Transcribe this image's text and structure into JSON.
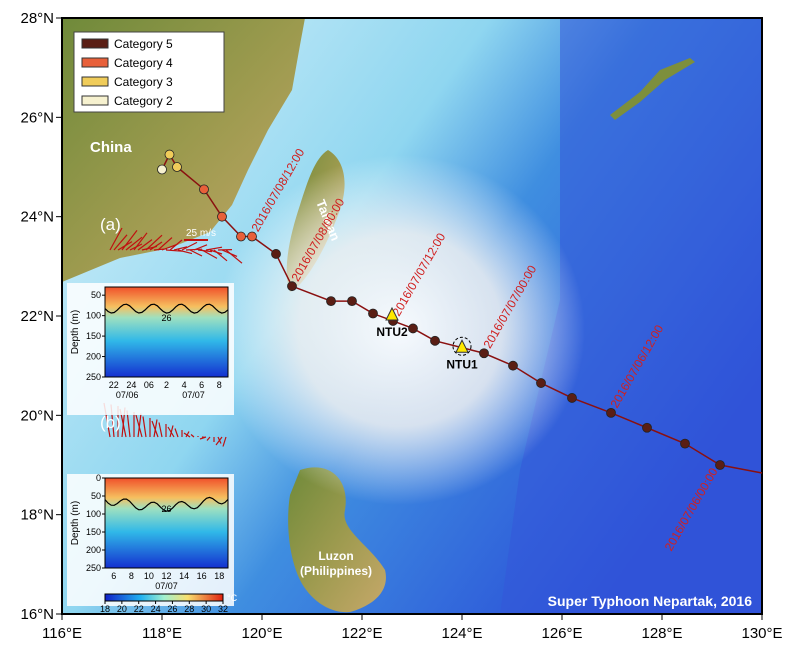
{
  "map": {
    "title": "Super Typhoon Nepartak, 2016",
    "lonlim": [
      116,
      130
    ],
    "latlim": [
      16,
      28
    ],
    "lon_ticks": [
      {
        "value": 116,
        "label": "116°E"
      },
      {
        "value": 118,
        "label": "118°E"
      },
      {
        "value": 120,
        "label": "120°E"
      },
      {
        "value": 122,
        "label": "122°E"
      },
      {
        "value": 124,
        "label": "124°E"
      },
      {
        "value": 126,
        "label": "126°E"
      },
      {
        "value": 128,
        "label": "128°E"
      },
      {
        "value": 130,
        "label": "130°E"
      }
    ],
    "lat_ticks": [
      {
        "value": 16,
        "label": "16°N"
      },
      {
        "value": 18,
        "label": "18°N"
      },
      {
        "value": 20,
        "label": "20°N"
      },
      {
        "value": 22,
        "label": "22°N"
      },
      {
        "value": 24,
        "label": "24°N"
      },
      {
        "value": 26,
        "label": "26°N"
      },
      {
        "value": 28,
        "label": "28°N"
      }
    ],
    "legend": [
      {
        "label": "Category 5",
        "color": "#5a1e14"
      },
      {
        "label": "Category 4",
        "color": "#e8603a"
      },
      {
        "label": "Category 3",
        "color": "#f0cc5a"
      },
      {
        "label": "Category 2",
        "color": "#f6f1cf"
      }
    ],
    "places": {
      "china": "China",
      "taiwan": "Taiwan",
      "luzon": "Luzon",
      "philippines": "(Philippines)"
    },
    "stations": [
      {
        "name": "NTU1",
        "lon": 124.0,
        "lat": 21.35
      },
      {
        "name": "NTU2",
        "lon": 122.6,
        "lat": 22.0
      }
    ],
    "track": [
      {
        "lon": 129.16,
        "lat": 19.0,
        "category": 5,
        "time": "2016/07/06/00:00"
      },
      {
        "lon": 128.46,
        "lat": 19.43,
        "category": 5
      },
      {
        "lon": 127.7,
        "lat": 19.75,
        "category": 5
      },
      {
        "lon": 126.98,
        "lat": 20.05,
        "category": 5,
        "time": "2016/07/06/12:00"
      },
      {
        "lon": 126.2,
        "lat": 20.35,
        "category": 5
      },
      {
        "lon": 125.58,
        "lat": 20.65,
        "category": 5
      },
      {
        "lon": 125.02,
        "lat": 21.0,
        "category": 5
      },
      {
        "lon": 124.44,
        "lat": 21.25,
        "category": 5,
        "time": "2016/07/07/00:00"
      },
      {
        "lon": 123.46,
        "lat": 21.5,
        "category": 5
      },
      {
        "lon": 123.02,
        "lat": 21.75,
        "category": 5
      },
      {
        "lon": 122.62,
        "lat": 21.9,
        "category": 5,
        "time": "2016/07/07/12:00"
      },
      {
        "lon": 122.22,
        "lat": 22.05,
        "category": 5
      },
      {
        "lon": 121.8,
        "lat": 22.3,
        "category": 5
      },
      {
        "lon": 121.38,
        "lat": 22.3,
        "category": 5
      },
      {
        "lon": 120.6,
        "lat": 22.6,
        "category": 5,
        "time": "2016/07/08/00:00"
      },
      {
        "lon": 120.28,
        "lat": 23.25,
        "category": 5
      },
      {
        "lon": 119.8,
        "lat": 23.6,
        "category": 4,
        "time": "2016/07/08/12:00"
      },
      {
        "lon": 119.58,
        "lat": 23.6,
        "category": 4
      },
      {
        "lon": 119.2,
        "lat": 24.0,
        "category": 4
      },
      {
        "lon": 118.84,
        "lat": 24.55,
        "category": 4
      },
      {
        "lon": 118.3,
        "lat": 25.0,
        "category": 3
      },
      {
        "lon": 118.15,
        "lat": 25.25,
        "category": 3
      },
      {
        "lon": 118.0,
        "lat": 24.95,
        "category": 2
      }
    ]
  },
  "panels": {
    "a": {
      "label": "(a)",
      "scale": "25 m/s"
    },
    "b": {
      "label": "(b)"
    }
  },
  "insets": [
    {
      "ylabel": "Depth (m)",
      "ylim": [
        30,
        250
      ],
      "yticks": [
        50,
        100,
        150,
        200,
        250
      ],
      "xticks": [
        "22",
        "24",
        "06",
        "2",
        "4",
        "6",
        "8"
      ],
      "dates": [
        "07/06",
        "07/07"
      ],
      "contour": "26"
    },
    {
      "ylabel": "Depth (m)",
      "ylim": [
        0,
        250
      ],
      "yticks": [
        0,
        50,
        100,
        150,
        200,
        250
      ],
      "xticks": [
        "6",
        "8",
        "10",
        "12",
        "14",
        "16",
        "18"
      ],
      "dates": [
        "07/07"
      ],
      "contour": "26"
    }
  ],
  "colorbar": {
    "ticks": [
      18,
      20,
      22,
      24,
      26,
      28,
      30,
      32
    ],
    "unit": "°C"
  }
}
